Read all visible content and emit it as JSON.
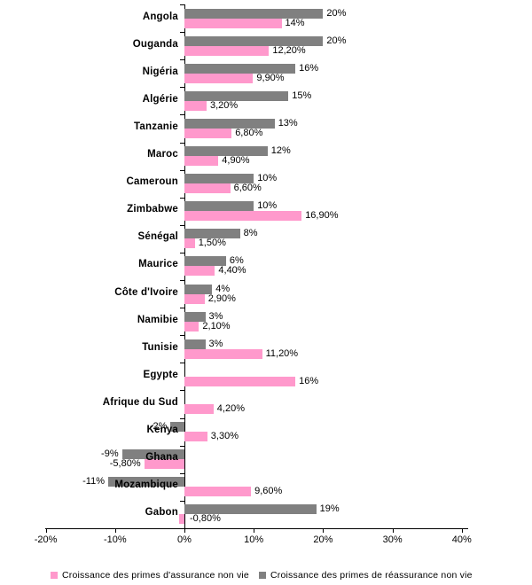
{
  "chart_data": {
    "type": "bar",
    "orientation": "horizontal",
    "grouped": true,
    "title": "",
    "x_axis": {
      "min": -20,
      "max": 40,
      "tick_values": [
        -20,
        -10,
        0,
        10,
        20,
        30,
        40
      ],
      "tick_labels": [
        "-20%",
        "-10%",
        "0%",
        "10%",
        "20%",
        "30%",
        "40%"
      ]
    },
    "series": [
      {
        "key": "assurance",
        "name": "Croissance des primes d'assurance non vie",
        "color": "#FF99CC"
      },
      {
        "key": "reassurance",
        "name": "Croissance des primes de réassurance non vie",
        "color": "#808080"
      }
    ],
    "countries": [
      {
        "name": "Angola",
        "reassurance": 20,
        "reassurance_label": "20%",
        "assurance": 14,
        "assurance_label": "14%"
      },
      {
        "name": "Ouganda",
        "reassurance": 20,
        "reassurance_label": "20%",
        "assurance": 12.2,
        "assurance_label": "12,20%"
      },
      {
        "name": "Nigéria",
        "reassurance": 16,
        "reassurance_label": "16%",
        "assurance": 9.9,
        "assurance_label": "9,90%"
      },
      {
        "name": "Algérie",
        "reassurance": 15,
        "reassurance_label": "15%",
        "assurance": 3.2,
        "assurance_label": "3,20%"
      },
      {
        "name": "Tanzanie",
        "reassurance": 13,
        "reassurance_label": "13%",
        "assurance": 6.8,
        "assurance_label": "6,80%"
      },
      {
        "name": "Maroc",
        "reassurance": 12,
        "reassurance_label": "12%",
        "assurance": 4.9,
        "assurance_label": "4,90%"
      },
      {
        "name": "Cameroun",
        "reassurance": 10,
        "reassurance_label": "10%",
        "assurance": 6.6,
        "assurance_label": "6,60%"
      },
      {
        "name": "Zimbabwe",
        "reassurance": 10,
        "reassurance_label": "10%",
        "assurance": 16.9,
        "assurance_label": "16,90%"
      },
      {
        "name": "Sénégal",
        "reassurance": 8,
        "reassurance_label": "8%",
        "assurance": 1.5,
        "assurance_label": "1,50%"
      },
      {
        "name": "Maurice",
        "reassurance": 6,
        "reassurance_label": "6%",
        "assurance": 4.4,
        "assurance_label": "4,40%"
      },
      {
        "name": "Côte d'Ivoire",
        "reassurance": 4,
        "reassurance_label": "4%",
        "assurance": 2.9,
        "assurance_label": "2,90%"
      },
      {
        "name": "Namibie",
        "reassurance": 3,
        "reassurance_label": "3%",
        "assurance": 2.1,
        "assurance_label": "2,10%"
      },
      {
        "name": "Tunisie",
        "reassurance": 3,
        "reassurance_label": "3%",
        "assurance": 11.2,
        "assurance_label": "11,20%"
      },
      {
        "name": "Egypte",
        "reassurance": null,
        "reassurance_label": null,
        "assurance": 16,
        "assurance_label": "16%"
      },
      {
        "name": "Afrique du Sud",
        "reassurance": null,
        "reassurance_label": null,
        "assurance": 4.2,
        "assurance_label": "4,20%"
      },
      {
        "name": "Kenya",
        "reassurance": -2,
        "reassurance_label": "-2%",
        "assurance": 3.3,
        "assurance_label": "3,30%"
      },
      {
        "name": "Ghana",
        "reassurance": -9,
        "reassurance_label": "-9%",
        "assurance": -5.8,
        "assurance_label": "-5,80%"
      },
      {
        "name": "Mozambique",
        "reassurance": -11,
        "reassurance_label": "-11%",
        "assurance": 9.6,
        "assurance_label": "9,60%"
      },
      {
        "name": "Gabon",
        "reassurance": 19,
        "reassurance_label": "19%",
        "assurance": -0.8,
        "assurance_label": "-0,80%",
        "assurance_label_side": "axis_right"
      }
    ]
  },
  "colors": {
    "assurance_pink": "#FF99CC",
    "reassurance_gray": "#808080",
    "axis": "#000000"
  }
}
